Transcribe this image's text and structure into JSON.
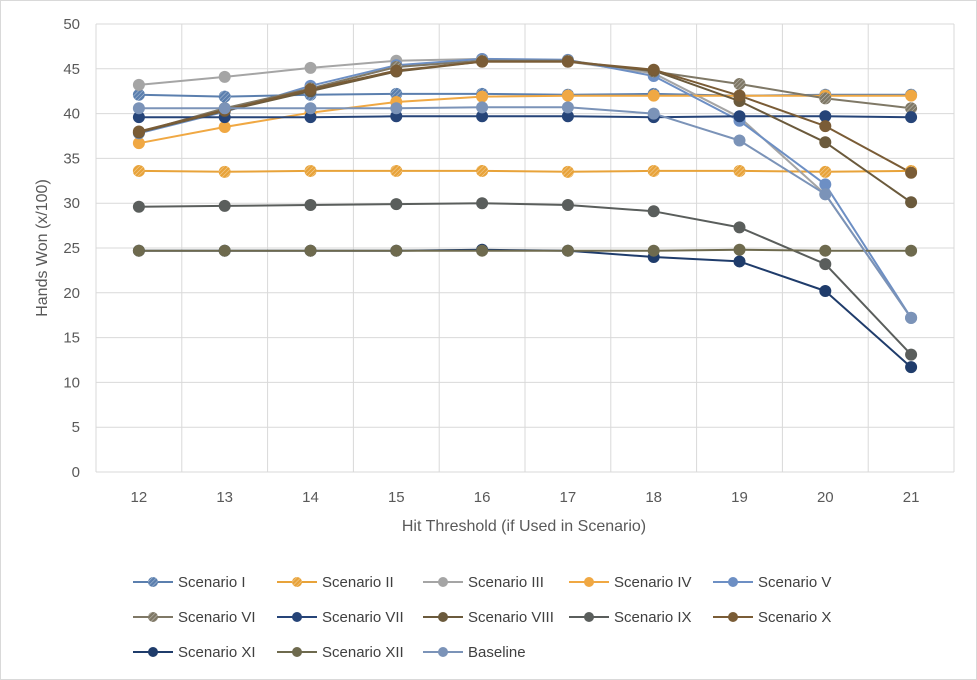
{
  "chart_data": {
    "type": "line",
    "title": "",
    "xlabel": "Hit Threshold (if Used in Scenario)",
    "ylabel": "Hands Won (x/100)",
    "x": [
      12,
      13,
      14,
      15,
      16,
      17,
      18,
      19,
      20,
      21
    ],
    "ylim": [
      0,
      50
    ],
    "yticks": [
      0,
      5,
      10,
      15,
      20,
      25,
      30,
      35,
      40,
      45,
      50
    ],
    "grid": true,
    "legend_position": "bottom",
    "series": [
      {
        "name": "Scenario I",
        "color": "#5b7fae",
        "marker": "hatched",
        "values": [
          42.1,
          41.9,
          42.1,
          42.2,
          42.2,
          42.1,
          42.2,
          42.0,
          42.1,
          42.1
        ]
      },
      {
        "name": "Scenario II",
        "color": "#e8a33a",
        "marker": "hatched",
        "values": [
          33.6,
          33.5,
          33.6,
          33.6,
          33.6,
          33.5,
          33.6,
          33.6,
          33.5,
          33.6
        ]
      },
      {
        "name": "Scenario III",
        "color": "#a5a5a5",
        "marker": "solid",
        "values": [
          43.2,
          44.1,
          45.1,
          45.9,
          46.1,
          45.8,
          44.5,
          39.6,
          31.0,
          17.2
        ]
      },
      {
        "name": "Scenario IV",
        "color": "#f0a843",
        "marker": "solid",
        "values": [
          36.7,
          38.5,
          40.1,
          41.3,
          41.9,
          42.0,
          42.0,
          42.0,
          42.0,
          42.0
        ]
      },
      {
        "name": "Scenario V",
        "color": "#6d8fc4",
        "marker": "solid",
        "values": [
          37.8,
          40.2,
          43.1,
          45.4,
          46.1,
          46.0,
          44.2,
          39.2,
          32.1,
          17.2
        ]
      },
      {
        "name": "Scenario VI",
        "color": "#7f7866",
        "marker": "hatched",
        "values": [
          37.9,
          40.6,
          42.8,
          45.2,
          45.9,
          45.9,
          44.7,
          43.3,
          41.7,
          40.6
        ]
      },
      {
        "name": "Scenario VII",
        "color": "#264478",
        "marker": "solid",
        "values": [
          39.6,
          39.6,
          39.6,
          39.7,
          39.7,
          39.7,
          39.6,
          39.7,
          39.7,
          39.6
        ]
      },
      {
        "name": "Scenario VIII",
        "color": "#6b5a3c",
        "marker": "solid",
        "values": [
          37.9,
          40.3,
          42.5,
          44.7,
          45.8,
          45.8,
          44.8,
          41.4,
          36.8,
          30.1
        ]
      },
      {
        "name": "Scenario IX",
        "color": "#5a5e5c",
        "marker": "solid",
        "values": [
          29.6,
          29.7,
          29.8,
          29.9,
          30.0,
          29.8,
          29.1,
          27.3,
          23.2,
          13.1
        ]
      },
      {
        "name": "Scenario X",
        "color": "#7a5c36",
        "marker": "solid",
        "values": [
          38.0,
          40.4,
          42.7,
          44.8,
          45.8,
          45.8,
          44.9,
          42.0,
          38.6,
          33.4
        ]
      },
      {
        "name": "Scenario XI",
        "color": "#1f3c6b",
        "marker": "solid",
        "values": [
          24.7,
          24.7,
          24.7,
          24.7,
          24.8,
          24.7,
          24.0,
          23.5,
          20.2,
          11.7
        ]
      },
      {
        "name": "Scenario XII",
        "color": "#6e6a4e",
        "marker": "solid",
        "values": [
          24.7,
          24.7,
          24.7,
          24.7,
          24.7,
          24.7,
          24.7,
          24.8,
          24.7,
          24.7
        ]
      },
      {
        "name": "Baseline",
        "color": "#7b93b8",
        "marker": "solid",
        "values": [
          40.6,
          40.6,
          40.6,
          40.6,
          40.7,
          40.7,
          40.0,
          37.0,
          31.0,
          17.2
        ]
      }
    ]
  }
}
